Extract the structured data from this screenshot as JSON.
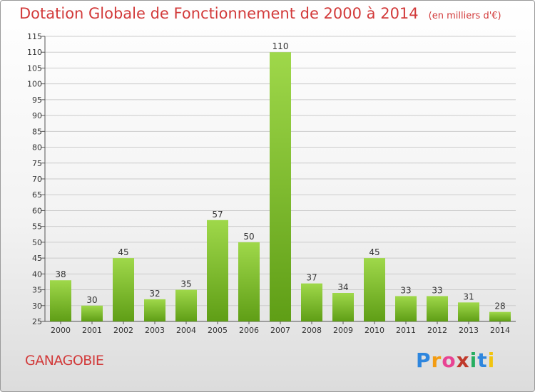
{
  "title": "Dotation Globale de Fonctionnement de 2000 à 2014",
  "subtitle": "(en milliers d'€)",
  "commune": "GANAGOBIE",
  "logo": {
    "letters": [
      "P",
      "r",
      "o",
      "x",
      "i",
      "t",
      "i"
    ],
    "colors": [
      "#2e86de",
      "#f39c12",
      "#e84393",
      "#c0392b",
      "#27ae60",
      "#2e86de",
      "#f1c40f"
    ]
  },
  "colors": {
    "bar_top": "#9fd84a",
    "bar_bottom": "#5f9e16",
    "title": "#d23a3a",
    "grid": "#cccccc"
  },
  "chart_data": {
    "type": "bar",
    "title": "Dotation Globale de Fonctionnement de 2000 à 2014",
    "subtitle": "(en milliers d'€)",
    "xlabel": "",
    "ylabel": "",
    "categories": [
      "2000",
      "2001",
      "2002",
      "2003",
      "2004",
      "2005",
      "2006",
      "2007",
      "2008",
      "2009",
      "2010",
      "2011",
      "2012",
      "2013",
      "2014"
    ],
    "values": [
      38,
      30,
      45,
      32,
      35,
      57,
      50,
      110,
      37,
      34,
      45,
      33,
      33,
      31,
      28
    ],
    "ylim": [
      25,
      115
    ],
    "yticks": [
      25,
      30,
      35,
      40,
      45,
      50,
      55,
      60,
      65,
      70,
      75,
      80,
      85,
      90,
      95,
      100,
      105,
      110,
      115
    ],
    "grid": true,
    "legend": "none"
  }
}
